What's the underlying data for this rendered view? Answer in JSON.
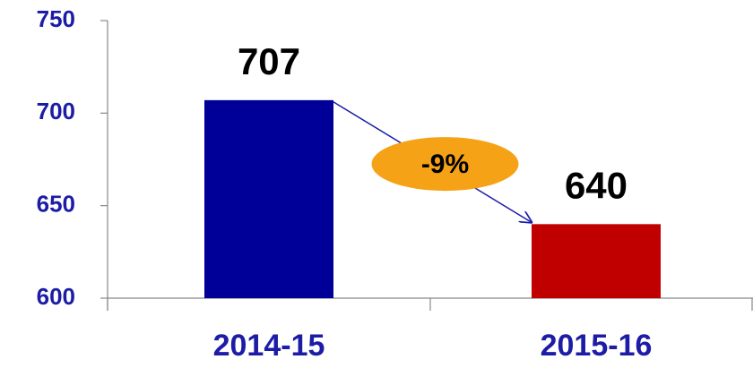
{
  "chart_data": {
    "type": "bar",
    "categories": [
      "2014-15",
      "2015-16"
    ],
    "values": [
      707,
      640
    ],
    "colors": [
      "#000099",
      "#c00000"
    ],
    "ylim": [
      600,
      750
    ],
    "yticks": [
      600,
      650,
      700,
      750
    ],
    "annotation": "-9%",
    "annotation_color": "#f5a216"
  }
}
